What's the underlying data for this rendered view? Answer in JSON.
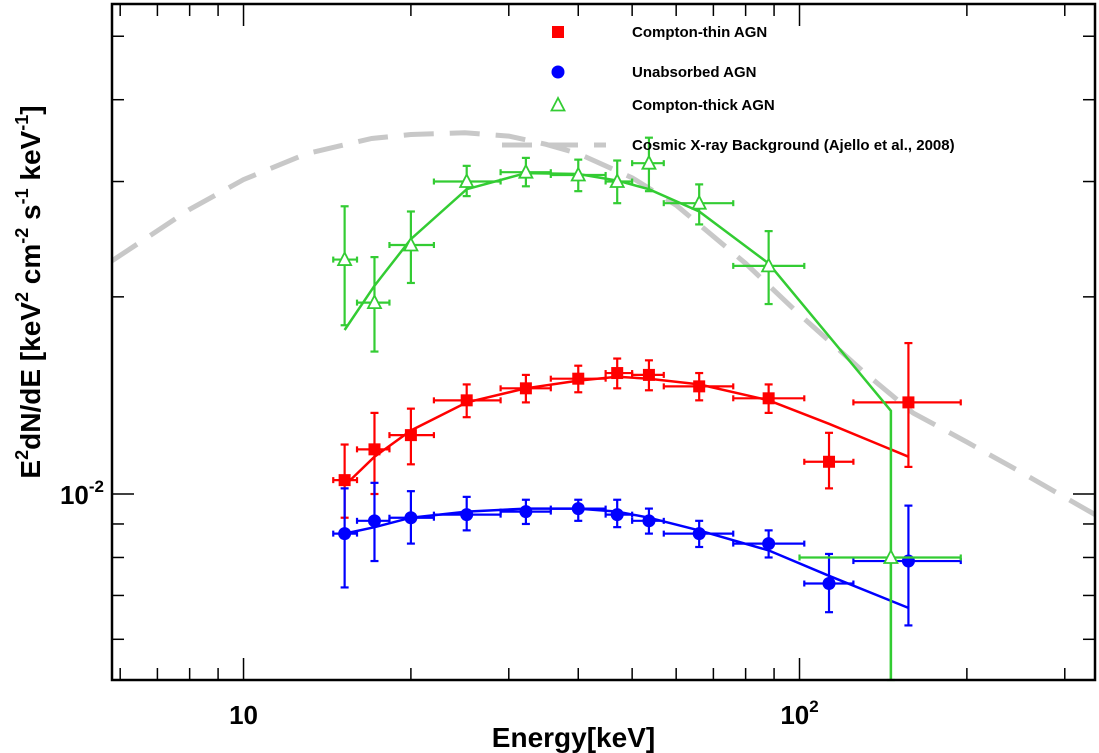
{
  "chart_data": {
    "type": "scatter",
    "xlabel": "Energy[keV]",
    "ylabel_parts": [
      "E",
      "2",
      "dN/dE [keV",
      "2",
      " cm",
      "-2",
      " s",
      "-1",
      " keV",
      "-1",
      "]"
    ],
    "x_scale": "log",
    "y_scale": "log",
    "xlim": [
      5.8,
      340
    ],
    "ylim": [
      0.0052,
      0.056
    ],
    "x_ticks": [
      {
        "value": 10,
        "base": "10",
        "exp": ""
      },
      {
        "value": 100,
        "base": "10",
        "exp": "2"
      }
    ],
    "y_ticks": [
      {
        "value": 0.01,
        "base": "10",
        "exp": "-2"
      }
    ],
    "grid": false,
    "legend_position": "top-right",
    "series": [
      {
        "name": "Compton-thin AGN",
        "marker": "square",
        "color": "#ff0000",
        "points": [
          {
            "x": 15.2,
            "y": 0.0105,
            "xlo": 14.5,
            "xhi": 16.0,
            "ylo": 0.0092,
            "yhi": 0.0119
          },
          {
            "x": 17.2,
            "y": 0.0117,
            "xlo": 16.0,
            "xhi": 18.3,
            "ylo": 0.01,
            "yhi": 0.0133
          },
          {
            "x": 20.0,
            "y": 0.0123,
            "xlo": 18.3,
            "xhi": 22.0,
            "ylo": 0.0111,
            "yhi": 0.0135
          },
          {
            "x": 25.2,
            "y": 0.0139,
            "xlo": 22.0,
            "xhi": 29.0,
            "ylo": 0.0131,
            "yhi": 0.0147
          },
          {
            "x": 32.2,
            "y": 0.0145,
            "xlo": 29.0,
            "xhi": 35.7,
            "ylo": 0.0138,
            "yhi": 0.0152
          },
          {
            "x": 40.0,
            "y": 0.015,
            "xlo": 35.7,
            "xhi": 44.8,
            "ylo": 0.0143,
            "yhi": 0.0157
          },
          {
            "x": 47.0,
            "y": 0.0153,
            "xlo": 44.8,
            "xhi": 50.0,
            "ylo": 0.0145,
            "yhi": 0.0161
          },
          {
            "x": 53.6,
            "y": 0.0152,
            "xlo": 50.0,
            "xhi": 57.0,
            "ylo": 0.0144,
            "yhi": 0.016
          },
          {
            "x": 66.0,
            "y": 0.0146,
            "xlo": 57.0,
            "xhi": 76.0,
            "ylo": 0.0139,
            "yhi": 0.0153
          },
          {
            "x": 88.0,
            "y": 0.014,
            "xlo": 76.0,
            "xhi": 102.0,
            "ylo": 0.0133,
            "yhi": 0.0147
          },
          {
            "x": 113.0,
            "y": 0.0112,
            "xlo": 102.0,
            "xhi": 125.0,
            "ylo": 0.0102,
            "yhi": 0.0124
          },
          {
            "x": 157.0,
            "y": 0.0138,
            "xlo": 125.0,
            "xhi": 195.0,
            "ylo": 0.011,
            "yhi": 0.017
          }
        ],
        "model": {
          "x": [
            15.2,
            17.2,
            20,
            25.2,
            32.2,
            40,
            47,
            53.6,
            66,
            88,
            113,
            157
          ],
          "y": [
            0.0103,
            0.0114,
            0.0125,
            0.0138,
            0.0145,
            0.0149,
            0.0151,
            0.015,
            0.0147,
            0.0139,
            0.0128,
            0.0114
          ]
        }
      },
      {
        "name": "Unabsorbed AGN",
        "marker": "circle",
        "color": "#0000ff",
        "points": [
          {
            "x": 15.2,
            "y": 0.0087,
            "xlo": 14.5,
            "xhi": 16.0,
            "ylo": 0.0072,
            "yhi": 0.0102
          },
          {
            "x": 17.2,
            "y": 0.0091,
            "xlo": 16.0,
            "xhi": 18.3,
            "ylo": 0.0079,
            "yhi": 0.0104
          },
          {
            "x": 20.0,
            "y": 0.0092,
            "xlo": 18.3,
            "xhi": 22.0,
            "ylo": 0.0084,
            "yhi": 0.0101
          },
          {
            "x": 25.2,
            "y": 0.0093,
            "xlo": 22.0,
            "xhi": 29.0,
            "ylo": 0.0088,
            "yhi": 0.0099
          },
          {
            "x": 32.2,
            "y": 0.0094,
            "xlo": 29.0,
            "xhi": 35.7,
            "ylo": 0.009,
            "yhi": 0.0098
          },
          {
            "x": 40.0,
            "y": 0.0095,
            "xlo": 35.7,
            "xhi": 44.8,
            "ylo": 0.0091,
            "yhi": 0.0098
          },
          {
            "x": 47.0,
            "y": 0.0093,
            "xlo": 44.8,
            "xhi": 50.0,
            "ylo": 0.0089,
            "yhi": 0.0098
          },
          {
            "x": 53.6,
            "y": 0.0091,
            "xlo": 50.0,
            "xhi": 57.0,
            "ylo": 0.0087,
            "yhi": 0.0095
          },
          {
            "x": 66.0,
            "y": 0.0087,
            "xlo": 57.0,
            "xhi": 76.0,
            "ylo": 0.0083,
            "yhi": 0.0091
          },
          {
            "x": 88.0,
            "y": 0.0084,
            "xlo": 76.0,
            "xhi": 102.0,
            "ylo": 0.008,
            "yhi": 0.0088
          },
          {
            "x": 113.0,
            "y": 0.0073,
            "xlo": 102.0,
            "xhi": 125.0,
            "ylo": 0.0066,
            "yhi": 0.0081
          },
          {
            "x": 157.0,
            "y": 0.0079,
            "xlo": 125.0,
            "xhi": 195.0,
            "ylo": 0.0063,
            "yhi": 0.0096
          }
        ],
        "model": {
          "x": [
            15.2,
            17.2,
            20,
            25.2,
            32.2,
            40,
            47,
            53.6,
            66,
            88,
            113,
            157
          ],
          "y": [
            0.0087,
            0.0089,
            0.0092,
            0.0094,
            0.0095,
            0.0095,
            0.0094,
            0.0092,
            0.0088,
            0.0082,
            0.0075,
            0.0067
          ]
        }
      },
      {
        "name": "Compton-thick AGN",
        "marker": "triangle-open",
        "color": "#33cc33",
        "points": [
          {
            "x": 15.2,
            "y": 0.0228,
            "xlo": 14.5,
            "xhi": 16.0,
            "ylo": 0.0181,
            "yhi": 0.0275
          },
          {
            "x": 17.2,
            "y": 0.0196,
            "xlo": 16.0,
            "xhi": 18.3,
            "ylo": 0.0165,
            "yhi": 0.023
          },
          {
            "x": 20.0,
            "y": 0.024,
            "xlo": 18.3,
            "xhi": 22.0,
            "ylo": 0.021,
            "yhi": 0.027
          },
          {
            "x": 25.2,
            "y": 0.03,
            "xlo": 22.0,
            "xhi": 29.0,
            "ylo": 0.0285,
            "yhi": 0.0317
          },
          {
            "x": 32.2,
            "y": 0.031,
            "xlo": 29.0,
            "xhi": 35.7,
            "ylo": 0.0295,
            "yhi": 0.0326
          },
          {
            "x": 40.0,
            "y": 0.0307,
            "xlo": 35.7,
            "xhi": 44.8,
            "ylo": 0.029,
            "yhi": 0.0324
          },
          {
            "x": 47.0,
            "y": 0.03,
            "xlo": 44.8,
            "xhi": 50.0,
            "ylo": 0.0278,
            "yhi": 0.0323
          },
          {
            "x": 53.6,
            "y": 0.032,
            "xlo": 50.0,
            "xhi": 57.0,
            "ylo": 0.029,
            "yhi": 0.035
          },
          {
            "x": 66.0,
            "y": 0.0278,
            "xlo": 57.0,
            "xhi": 76.0,
            "ylo": 0.0258,
            "yhi": 0.0297
          },
          {
            "x": 88.0,
            "y": 0.0223,
            "xlo": 76.0,
            "xhi": 102.0,
            "ylo": 0.0195,
            "yhi": 0.0252
          },
          {
            "x": 146.0,
            "y": 0.008,
            "xlo": 100.0,
            "xhi": 195.0,
            "ylo": 0.0052,
            "yhi": 0.008
          }
        ],
        "model": {
          "x": [
            15.2,
            17.2,
            20,
            25.2,
            32.2,
            40,
            47,
            53.6,
            66,
            88,
            146,
            146
          ],
          "y": [
            0.0178,
            0.0208,
            0.0245,
            0.0292,
            0.0309,
            0.0308,
            0.0301,
            0.0292,
            0.027,
            0.0225,
            0.0134,
            0.0052
          ]
        }
      }
    ],
    "background": {
      "name": "Cosmic X-ray Background (Ajello et al., 2008)",
      "color": "#c8c8c8",
      "style": "dashed",
      "x": [
        5.8,
        8,
        10,
        13,
        17,
        20,
        25,
        30,
        35,
        40,
        50,
        60,
        80,
        100,
        130,
        160,
        200,
        250,
        340
      ],
      "y": [
        0.0227,
        0.0272,
        0.0302,
        0.0331,
        0.0349,
        0.0354,
        0.0356,
        0.0352,
        0.0342,
        0.0331,
        0.0304,
        0.0276,
        0.0225,
        0.0188,
        0.0154,
        0.0133,
        0.012,
        0.0108,
        0.0093
      ]
    }
  }
}
